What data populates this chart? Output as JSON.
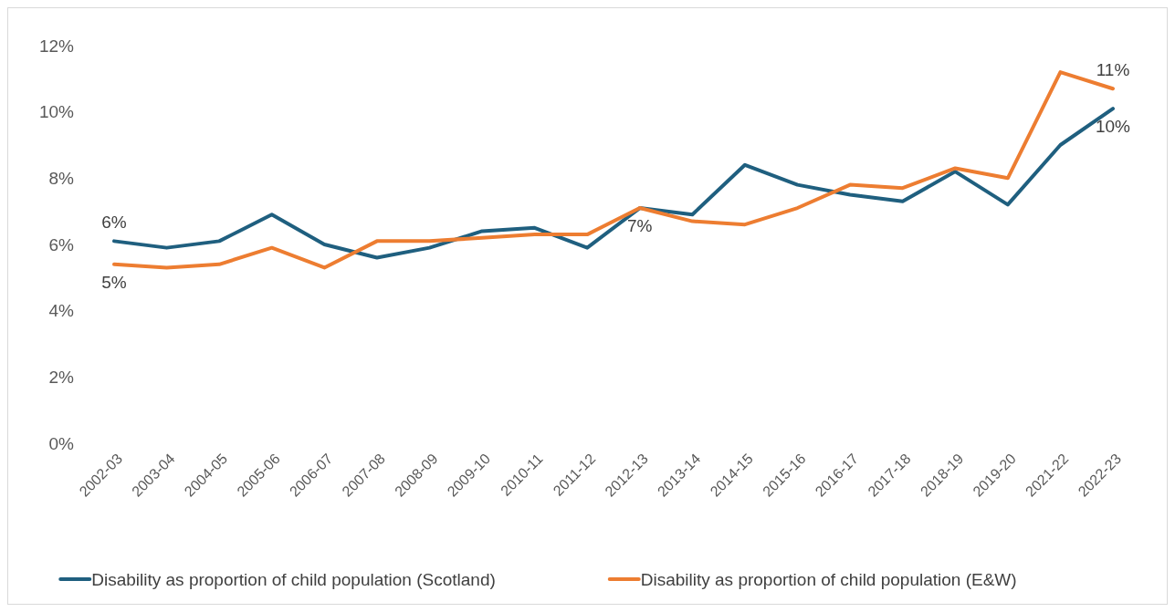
{
  "chart_data": {
    "type": "line",
    "categories": [
      "2002-03",
      "2003-04",
      "2004-05",
      "2005-06",
      "2006-07",
      "2007-08",
      "2008-09",
      "2009-10",
      "2010-11",
      "2011-12",
      "2012-13",
      "2013-14",
      "2014-15",
      "2015-16",
      "2016-17",
      "2017-18",
      "2018-19",
      "2019-20",
      "2021-22",
      "2022-23"
    ],
    "series": [
      {
        "name": "Disability as proportion of child population (Scotland)",
        "color": "#1f5f7f",
        "values": [
          6.1,
          5.9,
          6.1,
          6.9,
          6.0,
          5.6,
          5.9,
          6.4,
          6.5,
          5.9,
          7.1,
          6.9,
          8.4,
          7.8,
          7.5,
          7.3,
          8.2,
          7.2,
          9.0,
          10.1
        ],
        "value_labels": [
          "6%",
          null,
          null,
          null,
          null,
          null,
          null,
          null,
          null,
          null,
          null,
          null,
          null,
          null,
          null,
          null,
          null,
          null,
          null,
          "10%"
        ]
      },
      {
        "name": "Disability as proportion of child population (E&W)",
        "color": "#ed7d31",
        "values": [
          5.4,
          5.3,
          5.4,
          5.9,
          5.3,
          6.1,
          6.1,
          6.2,
          6.3,
          6.3,
          7.1,
          6.7,
          6.6,
          7.1,
          7.8,
          7.7,
          8.3,
          8.0,
          11.2,
          10.7
        ],
        "value_labels": [
          "5%",
          null,
          null,
          null,
          null,
          null,
          null,
          null,
          null,
          null,
          "7%",
          null,
          null,
          null,
          null,
          null,
          null,
          null,
          null,
          "11%"
        ]
      }
    ],
    "ylim": [
      0,
      12
    ],
    "yticks": [
      {
        "value": 0,
        "label": "0%"
      },
      {
        "value": 2,
        "label": "2%"
      },
      {
        "value": 4,
        "label": "4%"
      },
      {
        "value": 6,
        "label": "6%"
      },
      {
        "value": 8,
        "label": "8%"
      },
      {
        "value": 10,
        "label": "10%"
      },
      {
        "value": 12,
        "label": "12%"
      }
    ],
    "grid": false,
    "legend": "bottom",
    "marker": "none",
    "line_style": "solid"
  }
}
